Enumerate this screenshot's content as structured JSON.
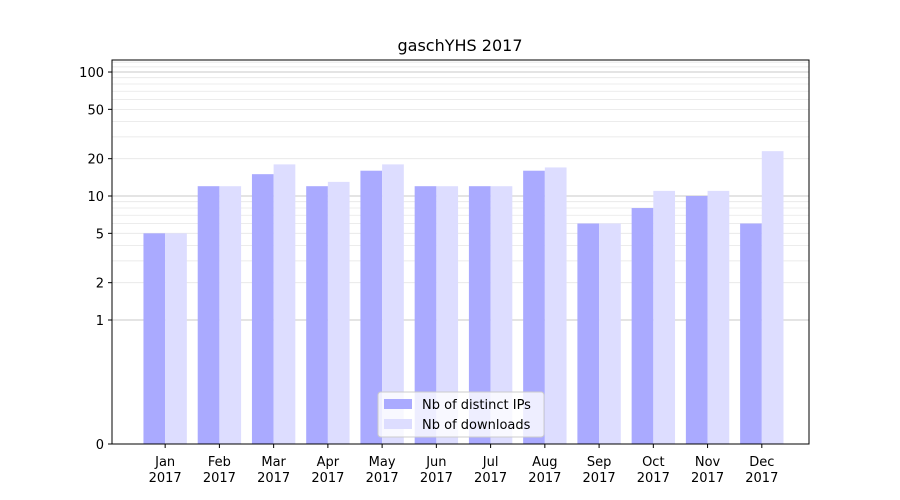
{
  "chart_data": {
    "type": "bar",
    "title": "gaschYHS 2017",
    "categories": [
      [
        "Jan",
        "2017"
      ],
      [
        "Feb",
        "2017"
      ],
      [
        "Mar",
        "2017"
      ],
      [
        "Apr",
        "2017"
      ],
      [
        "May",
        "2017"
      ],
      [
        "Jun",
        "2017"
      ],
      [
        "Jul",
        "2017"
      ],
      [
        "Aug",
        "2017"
      ],
      [
        "Sep",
        "2017"
      ],
      [
        "Oct",
        "2017"
      ],
      [
        "Nov",
        "2017"
      ],
      [
        "Dec",
        "2017"
      ]
    ],
    "series": [
      {
        "name": "Nb of distinct IPs",
        "color": "#aaaaff",
        "values": [
          5,
          12,
          15,
          12,
          16,
          12,
          12,
          16,
          6,
          8,
          10,
          6
        ]
      },
      {
        "name": "Nb of downloads",
        "color": "#ddddff",
        "values": [
          5,
          12,
          18,
          13,
          18,
          12,
          12,
          17,
          6,
          11,
          11,
          23
        ]
      }
    ],
    "yscale": "symlog",
    "yticks": [
      0,
      1,
      2,
      5,
      10,
      20,
      50,
      100
    ],
    "ylim": [
      0,
      125
    ],
    "grid": "y",
    "legend_position": "lower center"
  }
}
